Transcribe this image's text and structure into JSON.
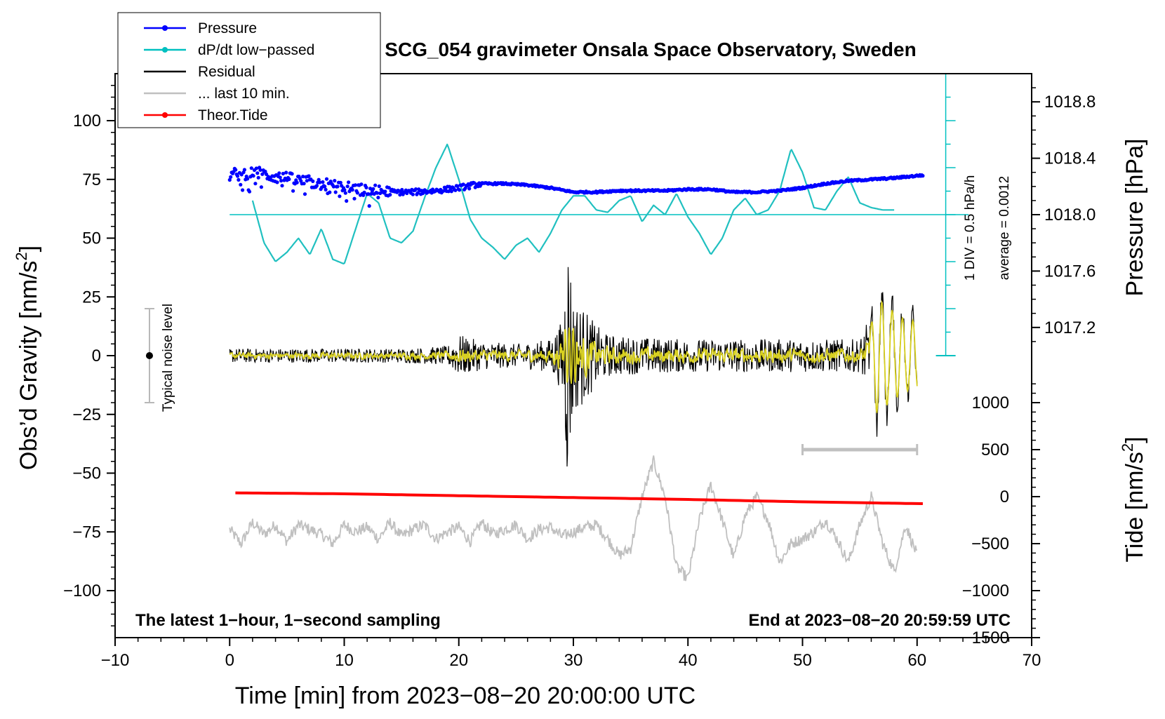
{
  "chart_data": {
    "type": "line",
    "title": "SCG_054 gravimeter Onsala Space Observatory, Sweden",
    "xlabel": "Time [min] from 2023−08−20 20:00:00 UTC",
    "ylabel_left_main": "Obs’d Gravity [nm/s",
    "ylabel_left_sup": "2",
    "ylabel_left_end": "]",
    "ylabel_right_pressure": "Pressure [hPa]",
    "ylabel_right_tide_main": "Tide [nm/s",
    "ylabel_right_tide_sup": "2",
    "ylabel_right_tide_end": "]",
    "xlim": [
      -10,
      70
    ],
    "ylim_gravity": [
      -120,
      120
    ],
    "x_ticks": [
      "−10",
      "0",
      "10",
      "20",
      "30",
      "40",
      "50",
      "60",
      "70"
    ],
    "x_tick_values": [
      -10,
      0,
      10,
      20,
      30,
      40,
      50,
      60,
      70
    ],
    "y_left_ticks": [
      "100",
      "75",
      "50",
      "25",
      "0",
      "−25",
      "−50",
      "−75",
      "−100"
    ],
    "y_left_tick_values": [
      100,
      75,
      50,
      25,
      0,
      -25,
      -50,
      -75,
      -100
    ],
    "pressure_ticks": [
      "1018.8",
      "1018.4",
      "1018.0",
      "1017.6",
      "1017.2"
    ],
    "pressure_tick_values": [
      1018.8,
      1018.4,
      1018.0,
      1017.6,
      1017.2
    ],
    "tide_ticks": [
      "1000",
      "500",
      "0",
      "−500",
      "−1000",
      "−1500"
    ],
    "tide_tick_values": [
      1000,
      500,
      0,
      -500,
      -1000,
      -1500
    ],
    "legend": [
      {
        "label": "Pressure",
        "color": "#0000ff",
        "marker": "dot"
      },
      {
        "label": "dP/dt low−passed",
        "color": "#00c0c0",
        "marker": "dot"
      },
      {
        "label": "Residual",
        "color": "#000000",
        "marker": "none"
      },
      {
        "label": "... last 10 min.",
        "color": "#c0c0c0",
        "marker": "none"
      },
      {
        "label": "Theor.Tide",
        "color": "#ff0000",
        "marker": "dot"
      }
    ],
    "annotations": {
      "bottom_left": "The latest 1−hour, 1−second sampling",
      "bottom_right": "End at 2023−08−20 20:59:59 UTC",
      "noise_label": "Typical noise level",
      "dpdt_scale": "1 DIV = 0.5 hPa/h",
      "dpdt_average": "average = 0.0012"
    },
    "noise_level": {
      "x": -7,
      "center": 0,
      "half_range": 20
    },
    "last10_bar": {
      "x_start": 50,
      "x_end": 60,
      "y": -40
    },
    "series": [
      {
        "name": "Pressure",
        "axis": "pressure_hPa",
        "x": [
          0,
          2,
          4,
          6,
          8,
          10,
          12,
          14,
          16,
          18,
          20,
          22,
          24,
          26,
          28,
          30,
          32,
          34,
          36,
          38,
          40,
          42,
          44,
          46,
          48,
          50,
          52,
          54,
          56,
          58,
          60.5
        ],
        "values": [
          1018.28,
          1018.3,
          1018.27,
          1018.24,
          1018.22,
          1018.19,
          1018.17,
          1018.16,
          1018.16,
          1018.17,
          1018.19,
          1018.22,
          1018.22,
          1018.21,
          1018.19,
          1018.16,
          1018.16,
          1018.17,
          1018.17,
          1018.17,
          1018.18,
          1018.18,
          1018.16,
          1018.16,
          1018.17,
          1018.19,
          1018.22,
          1018.24,
          1018.25,
          1018.26,
          1018.28
        ]
      },
      {
        "name": "dP/dt low−passed",
        "axis": "gravity_display",
        "baseline": 60,
        "x": [
          2,
          3,
          4,
          5,
          6,
          7,
          8,
          9,
          10,
          11,
          12,
          13,
          14,
          15,
          16,
          17,
          18,
          19,
          20,
          21,
          22,
          23,
          24,
          25,
          26,
          27,
          28,
          29,
          30,
          31,
          32,
          33,
          34,
          35,
          36,
          37,
          38,
          39,
          40,
          41,
          42,
          43,
          44,
          45,
          46,
          47,
          48,
          49,
          50,
          51,
          52,
          53,
          54,
          55,
          56,
          57,
          58
        ],
        "values": [
          66,
          48,
          40,
          44,
          50,
          43,
          54,
          41,
          39,
          54,
          69,
          65,
          50,
          48,
          53,
          67,
          80,
          90,
          75,
          58,
          50,
          46,
          41,
          47,
          50,
          44,
          52,
          62,
          68,
          68,
          62,
          61,
          66,
          68,
          57,
          64,
          60,
          69,
          59,
          52,
          43,
          50,
          62,
          67,
          60,
          62,
          70,
          88,
          78,
          63,
          62,
          70,
          76,
          65,
          63,
          62,
          62
        ]
      },
      {
        "name": "Residual",
        "axis": "gravity",
        "envelope_x": [
          0,
          5,
          10,
          15,
          19,
          20,
          22,
          25,
          28,
          29,
          29.5,
          30,
          31,
          32,
          33,
          35,
          40,
          45,
          50,
          55,
          56,
          56.5,
          57,
          58,
          59,
          60
        ],
        "envelope_amp": [
          3,
          3,
          3,
          3,
          4,
          9,
          6,
          5,
          7,
          15,
          58,
          25,
          20,
          13,
          9,
          8,
          7,
          7,
          7,
          7,
          18,
          33,
          30,
          25,
          20,
          20
        ]
      },
      {
        "name": "... last 10 min.",
        "axis": "gravity_display",
        "x": [
          0,
          1,
          2,
          3,
          4,
          5,
          6,
          7,
          8,
          9,
          10,
          11,
          12,
          13,
          14,
          15,
          16,
          17,
          18,
          19,
          20,
          21,
          22,
          23,
          24,
          25,
          26,
          27,
          28,
          29,
          30,
          31,
          32,
          33,
          34,
          35,
          36,
          37,
          38,
          39,
          40,
          41,
          42,
          43,
          44,
          45,
          46,
          47,
          48,
          49,
          50,
          51,
          52,
          53,
          54,
          55,
          56,
          57,
          58,
          59,
          60
        ],
        "values": [
          -74,
          -80,
          -71,
          -76,
          -72,
          -79,
          -72,
          -74,
          -76,
          -80,
          -72,
          -75,
          -73,
          -78,
          -71,
          -77,
          -74,
          -72,
          -78,
          -75,
          -73,
          -79,
          -71,
          -76,
          -74,
          -72,
          -78,
          -74,
          -73,
          -77,
          -75,
          -73,
          -72,
          -78,
          -85,
          -82,
          -60,
          -45,
          -60,
          -90,
          -95,
          -70,
          -55,
          -70,
          -86,
          -68,
          -60,
          -70,
          -88,
          -80,
          -78,
          -75,
          -70,
          -78,
          -88,
          -72,
          -60,
          -80,
          -92,
          -72,
          -85
        ]
      },
      {
        "name": "Theor.Tide",
        "axis": "tide",
        "x": [
          0.5,
          10,
          20,
          30,
          40,
          50,
          60.5
        ],
        "values": [
          40,
          30,
          10,
          -10,
          -30,
          -55,
          -75
        ]
      }
    ]
  }
}
